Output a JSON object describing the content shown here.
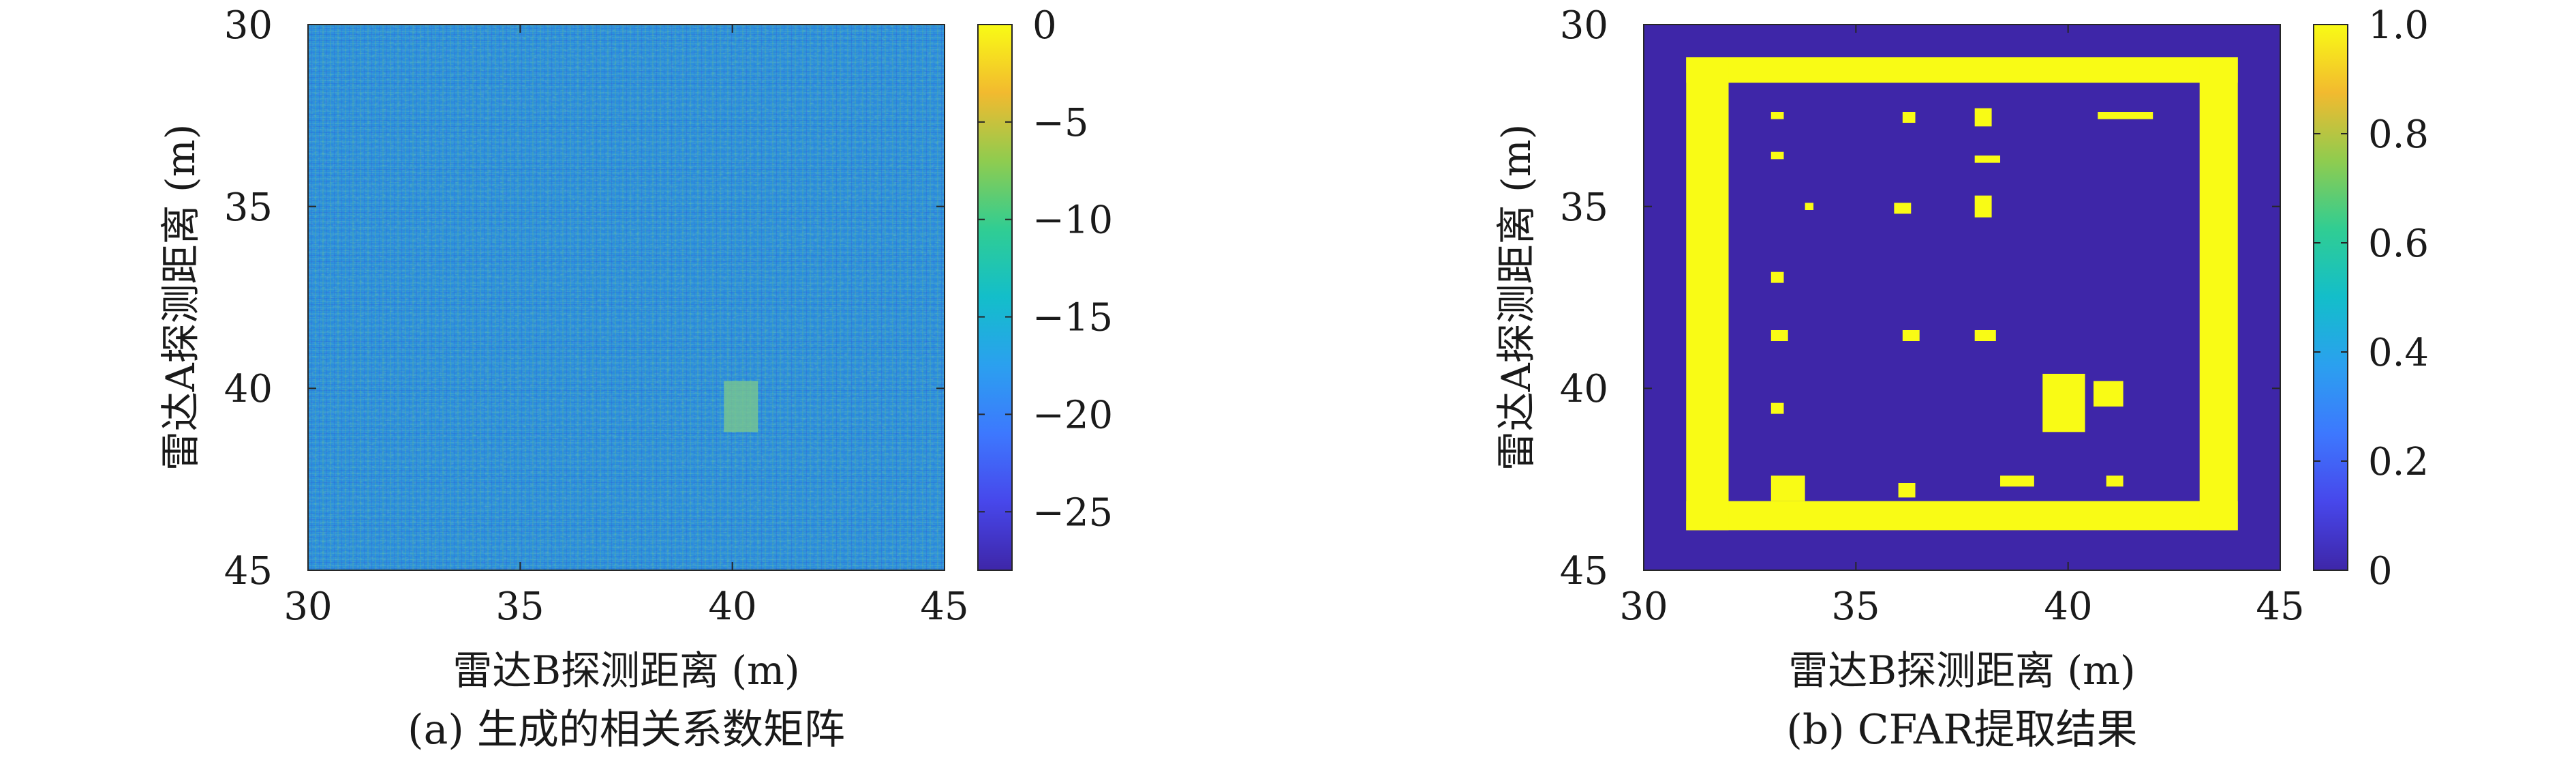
{
  "chart_data": [
    {
      "panel": "a",
      "type": "heatmap",
      "caption": "(a) 生成的相关系数矩阵",
      "xlabel": "雷达B探测距离 (m)",
      "ylabel": "雷达A探测距离 (m)",
      "xlim": [
        30,
        45
      ],
      "ylim": [
        30,
        45
      ],
      "y_reversed": true,
      "xticks": [
        "30",
        "35",
        "40",
        "45"
      ],
      "yticks": [
        "30",
        "35",
        "40",
        "45"
      ],
      "colorbar": {
        "range": [
          -28,
          0
        ],
        "ticks": [
          "0",
          "−5",
          "−10",
          "−15",
          "−20",
          "−25"
        ],
        "tick_values": [
          0,
          -5,
          -10,
          -15,
          -20,
          -25
        ],
        "colormap": "parula"
      },
      "description_values": {
        "background_mean": -14,
        "background_noise_range": [
          -28,
          0
        ],
        "correlation_patch": {
          "x": [
            39.8,
            40.6
          ],
          "y": [
            39.8,
            41.2
          ],
          "level": -6
        }
      }
    },
    {
      "panel": "b",
      "type": "heatmap",
      "caption": "(b) CFAR提取结果",
      "xlabel": "雷达B探测距离 (m)",
      "ylabel": "雷达A探测距离 (m)",
      "xlim": [
        30,
        45
      ],
      "ylim": [
        30,
        45
      ],
      "y_reversed": true,
      "xticks": [
        "30",
        "35",
        "40",
        "45"
      ],
      "yticks": [
        "30",
        "35",
        "40",
        "45"
      ],
      "colorbar": {
        "range": [
          0,
          1
        ],
        "ticks": [
          "1.0",
          "0.8",
          "0.6",
          "0.4",
          "0.2",
          "0"
        ],
        "tick_values": [
          1.0,
          0.8,
          0.6,
          0.4,
          0.2,
          0
        ],
        "colormap": "parula"
      },
      "detections_value_1": [
        {
          "x": [
            31.0,
            44.0
          ],
          "y": [
            30.9,
            31.6
          ]
        },
        {
          "x": [
            31.0,
            44.0
          ],
          "y": [
            43.1,
            43.9
          ]
        },
        {
          "x": [
            31.0,
            32.0
          ],
          "y": [
            30.9,
            43.9
          ]
        },
        {
          "x": [
            43.1,
            44.0
          ],
          "y": [
            30.9,
            43.9
          ]
        },
        {
          "x": [
            33.0,
            33.3
          ],
          "y": [
            32.4,
            32.6
          ]
        },
        {
          "x": [
            36.1,
            36.4
          ],
          "y": [
            32.4,
            32.7
          ]
        },
        {
          "x": [
            37.8,
            38.2
          ],
          "y": [
            32.3,
            32.8
          ]
        },
        {
          "x": [
            40.7,
            42.0
          ],
          "y": [
            32.4,
            32.6
          ]
        },
        {
          "x": [
            33.0,
            33.3
          ],
          "y": [
            33.5,
            33.7
          ]
        },
        {
          "x": [
            37.8,
            38.4
          ],
          "y": [
            33.6,
            33.8
          ]
        },
        {
          "x": [
            33.8,
            34.0
          ],
          "y": [
            34.9,
            35.1
          ]
        },
        {
          "x": [
            35.9,
            36.3
          ],
          "y": [
            34.9,
            35.2
          ]
        },
        {
          "x": [
            37.8,
            38.2
          ],
          "y": [
            34.7,
            35.3
          ]
        },
        {
          "x": [
            33.0,
            33.3
          ],
          "y": [
            36.8,
            37.1
          ]
        },
        {
          "x": [
            33.0,
            33.4
          ],
          "y": [
            38.4,
            38.7
          ]
        },
        {
          "x": [
            36.1,
            36.5
          ],
          "y": [
            38.4,
            38.7
          ]
        },
        {
          "x": [
            37.8,
            38.3
          ],
          "y": [
            38.4,
            38.7
          ]
        },
        {
          "x": [
            39.4,
            40.4
          ],
          "y": [
            39.6,
            41.2
          ]
        },
        {
          "x": [
            40.6,
            41.3
          ],
          "y": [
            39.8,
            40.5
          ]
        },
        {
          "x": [
            33.0,
            33.3
          ],
          "y": [
            40.4,
            40.7
          ]
        },
        {
          "x": [
            33.0,
            33.8
          ],
          "y": [
            42.4,
            43.1
          ]
        },
        {
          "x": [
            36.0,
            36.4
          ],
          "y": [
            42.6,
            43.0
          ]
        },
        {
          "x": [
            38.4,
            39.2
          ],
          "y": [
            42.4,
            42.7
          ]
        },
        {
          "x": [
            40.9,
            41.3
          ],
          "y": [
            42.4,
            42.7
          ]
        }
      ]
    }
  ]
}
